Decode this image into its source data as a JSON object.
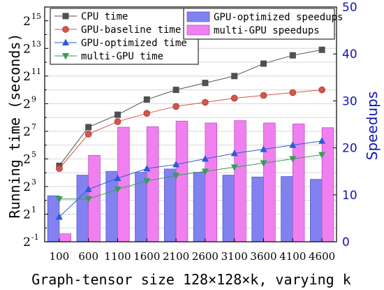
{
  "chart_data": {
    "type": "bar+line",
    "x": [
      100,
      600,
      1100,
      1600,
      2100,
      2600,
      3100,
      3600,
      4100,
      4600
    ],
    "xlabel": "Graph-tensor size 128×128×k, varying k",
    "ylabel_left": "Running time (seconds)",
    "ylabel_right": "Speedups",
    "left_axis": {
      "scale": "log2",
      "ylim_exponent": [
        -1,
        16
      ],
      "tick_exponents": [
        -1,
        1,
        3,
        5,
        7,
        9,
        11,
        13,
        15
      ],
      "tick_base": "2"
    },
    "right_axis": {
      "scale": "linear",
      "ylim": [
        0,
        50
      ],
      "ticks": [
        0,
        10,
        20,
        30,
        40,
        50
      ],
      "tick_labels": [
        "0",
        "10",
        "20",
        "30",
        "40",
        "50"
      ]
    },
    "x_tick_labels": [
      "100",
      "600",
      "1100",
      "1600",
      "2100",
      "2600",
      "3100",
      "3600",
      "4100",
      "4600"
    ],
    "grid": true,
    "line_series": [
      {
        "name": "CPU time",
        "color": "#505050",
        "marker": "square",
        "log2_values": [
          4.5,
          7.3,
          8.2,
          9.3,
          10.0,
          10.5,
          11.0,
          11.9,
          12.5,
          12.9
        ]
      },
      {
        "name": "GPU-baseline time",
        "color": "#d9534a",
        "marker": "circle",
        "log2_values": [
          4.3,
          6.8,
          7.7,
          8.3,
          8.8,
          9.1,
          9.4,
          9.6,
          9.8,
          10.0
        ]
      },
      {
        "name": "GPU-optimized time",
        "color": "#2a5ad6",
        "marker": "triangle-up",
        "log2_values": [
          0.8,
          2.8,
          3.6,
          4.3,
          4.6,
          5.0,
          5.4,
          5.7,
          6.0,
          6.3
        ]
      },
      {
        "name": "multi-GPU time",
        "color": "#3a9a5a",
        "marker": "triangle-down",
        "log2_values": [
          2.1,
          2.1,
          2.8,
          3.4,
          3.8,
          4.1,
          4.4,
          4.7,
          5.0,
          5.3
        ]
      }
    ],
    "bar_series": [
      {
        "name": "GPU-optimized speedups",
        "color": "#8181f0",
        "edge": "#5a5acf",
        "values": [
          9.8,
          14.2,
          15.0,
          14.8,
          15.5,
          14.8,
          14.2,
          13.8,
          13.9,
          13.3
        ]
      },
      {
        "name": "multi-GPU speedups",
        "color": "#f080f0",
        "edge": "#c050c0",
        "values": [
          1.7,
          18.4,
          24.4,
          24.5,
          25.7,
          25.3,
          25.8,
          25.3,
          25.1,
          24.3
        ]
      }
    ],
    "legend_left_position": "top-left",
    "legend_right_position": "top-right"
  }
}
